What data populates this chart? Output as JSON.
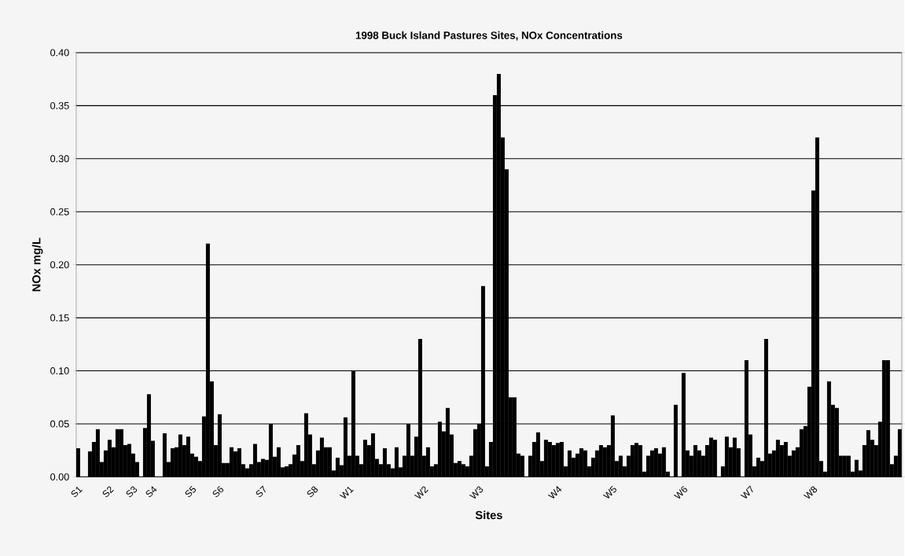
{
  "chart_data": {
    "type": "bar",
    "title": "1998 Buck Island Pastures Sites, NOx Concentrations",
    "xlabel": "Sites",
    "ylabel": "NOx mg/L",
    "categories": [
      "S1",
      null,
      null,
      null,
      null,
      null,
      null,
      null,
      "S2",
      null,
      null,
      null,
      null,
      null,
      "S3",
      null,
      null,
      null,
      null,
      "S4",
      null,
      null,
      null,
      null,
      null,
      null,
      null,
      null,
      null,
      "S5",
      null,
      null,
      null,
      null,
      null,
      null,
      "S6",
      null,
      null,
      null,
      null,
      null,
      null,
      null,
      null,
      null,
      null,
      "S7",
      null,
      null,
      null,
      null,
      null,
      null,
      null,
      null,
      null,
      null,
      null,
      null,
      "S8",
      null,
      null,
      null,
      null,
      null,
      null,
      null,
      null,
      "W1",
      null,
      null,
      null,
      null,
      null,
      null,
      null,
      null,
      null,
      null,
      null,
      null,
      null,
      null,
      null,
      null,
      null,
      null,
      "W2",
      null,
      null,
      null,
      null,
      null,
      null,
      null,
      null,
      null,
      null,
      null,
      null,
      null,
      "W3",
      null,
      null,
      null,
      null,
      null,
      null,
      null,
      null,
      null,
      null,
      null,
      null,
      null,
      null,
      null,
      null,
      null,
      null,
      null,
      "W4",
      null,
      null,
      null,
      null,
      null,
      null,
      null,
      null,
      null,
      null,
      null,
      null,
      null,
      "W5",
      null,
      null,
      null,
      null,
      null,
      null,
      null,
      null,
      null,
      null,
      null,
      null,
      null,
      null,
      null,
      null,
      null,
      "W6",
      null,
      null,
      null,
      null,
      null,
      null,
      null,
      null,
      null,
      null,
      null,
      null,
      null,
      null,
      null,
      null,
      "W7",
      null,
      null,
      null,
      null,
      null,
      null,
      null,
      null,
      null,
      null,
      null,
      null,
      null,
      null,
      null,
      "W8",
      null,
      null,
      null,
      null,
      null,
      null,
      null,
      null,
      null,
      null,
      null,
      null,
      null,
      null,
      null,
      null,
      null,
      null,
      null,
      null,
      null,
      null
    ],
    "series": [
      {
        "color": "#000000",
        "values": [
          0.027,
          0,
          0,
          0.024,
          0.033,
          0.045,
          0.014,
          0.025,
          0.035,
          0.028,
          0.045,
          0.045,
          0.03,
          0.031,
          0.022,
          0.014,
          0,
          0.046,
          0.078,
          0.034,
          0,
          0,
          0.041,
          0.014,
          0.027,
          0.028,
          0.04,
          0.03,
          0.038,
          0.022,
          0.019,
          0.015,
          0.057,
          0.22,
          0.09,
          0.03,
          0.059,
          0.013,
          0.013,
          0.028,
          0.024,
          0.027,
          0.012,
          0.008,
          0.012,
          0.031,
          0.014,
          0.017,
          0.016,
          0.05,
          0.019,
          0.028,
          0.009,
          0.01,
          0.012,
          0.021,
          0.03,
          0.015,
          0.06,
          0.04,
          0.012,
          0.025,
          0.037,
          0.028,
          0.028,
          0.006,
          0.018,
          0.011,
          0.056,
          0.02,
          0.1,
          0.02,
          0.012,
          0.035,
          0.03,
          0.041,
          0.017,
          0.012,
          0.027,
          0.012,
          0.008,
          0.028,
          0.009,
          0.02,
          0.05,
          0.02,
          0.038,
          0.13,
          0.02,
          0.028,
          0.01,
          0.012,
          0.052,
          0.043,
          0.065,
          0.04,
          0.013,
          0.015,
          0.012,
          0.01,
          0.02,
          0.045,
          0.05,
          0.18,
          0.01,
          0.033,
          0.36,
          0.38,
          0.32,
          0.29,
          0.075,
          0.075,
          0.022,
          0.02,
          0,
          0.02,
          0.033,
          0.042,
          0.015,
          0.035,
          0.033,
          0.03,
          0.032,
          0.033,
          0.01,
          0.025,
          0.018,
          0.022,
          0.027,
          0.025,
          0.01,
          0.018,
          0.025,
          0.03,
          0.028,
          0.03,
          0.058,
          0.015,
          0.02,
          0.01,
          0.02,
          0.03,
          0.032,
          0.03,
          0.005,
          0.02,
          0.025,
          0.027,
          0.022,
          0.028,
          0.005,
          0,
          0.068,
          0,
          0.098,
          0.025,
          0.02,
          0.03,
          0.025,
          0.02,
          0.03,
          0.037,
          0.035,
          0,
          0.01,
          0.038,
          0.028,
          0.037,
          0.027,
          0,
          0.11,
          0.04,
          0.01,
          0.018,
          0.015,
          0.13,
          0.022,
          0.025,
          0.035,
          0.03,
          0.033,
          0.02,
          0.025,
          0.028,
          0.045,
          0.048,
          0.085,
          0.27,
          0.32,
          0.015,
          0.005,
          0.09,
          0.068,
          0.065,
          0.02,
          0.02,
          0.02,
          0.005,
          0.016,
          0.006,
          0.03,
          0.044,
          0.035,
          0.03,
          0.052,
          0.11,
          0.11,
          0.012,
          0.02,
          0.045
        ]
      }
    ],
    "ylim": [
      0,
      0.4
    ],
    "yticks": [
      {
        "value": 0,
        "label": "0.00"
      },
      {
        "value": 0.05,
        "label": "0.05"
      },
      {
        "value": 0.1,
        "label": "0.10"
      },
      {
        "value": 0.15,
        "label": "0.15"
      },
      {
        "value": 0.2,
        "label": "0.20"
      },
      {
        "value": 0.25,
        "label": "0.25"
      },
      {
        "value": 0.3,
        "label": "0.30"
      },
      {
        "value": 0.35,
        "label": "0.35"
      },
      {
        "value": 0.4,
        "label": "0.40"
      }
    ],
    "grid": "y"
  }
}
